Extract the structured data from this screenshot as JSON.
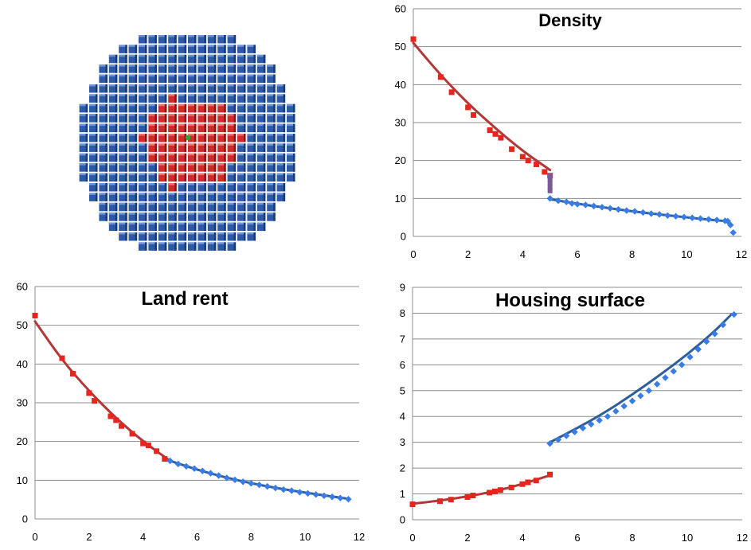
{
  "colors": {
    "grid": "#8c8c8c",
    "axis": "#8c8c8c",
    "center_marker": "#e8241e",
    "periphery_marker": "#3a7ce6",
    "center_curve": "#b03838",
    "periphery_curve": "#2e5e9a",
    "transition_marker": "#7a5a9a",
    "grid_block_blue": "#2d5aa8",
    "grid_block_red": "#d22a2a",
    "grid_center_dot": "#22aa33"
  },
  "grid_image": {
    "description_icon": "circular-city-grid-icon",
    "rows": [
      {
        "n": 10,
        "red": []
      },
      {
        "n": 14,
        "red": []
      },
      {
        "n": 16,
        "red": []
      },
      {
        "n": 18,
        "red": []
      },
      {
        "n": 18,
        "red": []
      },
      {
        "n": 20,
        "red": []
      },
      {
        "n": 20,
        "red": [
          9
        ]
      },
      {
        "n": 22,
        "red": [
          8,
          9,
          10,
          11,
          12,
          13,
          14
        ]
      },
      {
        "n": 22,
        "red": [
          7,
          8,
          9,
          10,
          11,
          12,
          13,
          14,
          15
        ]
      },
      {
        "n": 22,
        "red": [
          7,
          8,
          9,
          10,
          11,
          12,
          13,
          14,
          15
        ]
      },
      {
        "n": 22,
        "red": [
          6,
          7,
          8,
          9,
          10,
          11,
          12,
          13,
          14,
          15,
          16
        ]
      },
      {
        "n": 22,
        "red": [
          7,
          8,
          9,
          10,
          11,
          12,
          13,
          14,
          15
        ]
      },
      {
        "n": 22,
        "red": [
          7,
          8,
          9,
          10,
          11,
          12,
          13,
          14,
          15
        ]
      },
      {
        "n": 22,
        "red": [
          8,
          9,
          10,
          11,
          12,
          13,
          14
        ]
      },
      {
        "n": 22,
        "red": [
          8,
          9,
          10,
          11,
          12,
          13,
          14
        ]
      },
      {
        "n": 20,
        "red": [
          9
        ]
      },
      {
        "n": 20,
        "red": []
      },
      {
        "n": 18,
        "red": []
      },
      {
        "n": 18,
        "red": []
      },
      {
        "n": 16,
        "red": []
      },
      {
        "n": 14,
        "red": []
      },
      {
        "n": 10,
        "red": []
      }
    ],
    "center_row": 10,
    "center_col": 11
  },
  "chart_data": [
    {
      "type": "scatter",
      "title": "Density",
      "xlabel": "",
      "ylabel": "",
      "xlim": [
        0,
        12
      ],
      "ylim": [
        0,
        60
      ],
      "xticks": [
        "0",
        "2",
        "4",
        "6",
        "8",
        "10",
        "12"
      ],
      "yticks": [
        "0",
        "10",
        "20",
        "30",
        "40",
        "50",
        "60"
      ],
      "grid": true,
      "series": [
        {
          "role": "center",
          "x": [
            0,
            1.0,
            1.4,
            2.0,
            2.2,
            2.8,
            3.0,
            3.2,
            3.6,
            4.0,
            4.2,
            4.5,
            4.8,
            5.0
          ],
          "y": [
            52,
            42,
            38,
            34,
            32,
            28,
            27,
            26,
            23,
            21,
            20,
            19,
            17,
            16
          ]
        },
        {
          "role": "transition",
          "x": [
            5.0,
            5.0,
            5.0,
            5.0,
            5.0
          ],
          "y": [
            16,
            15,
            14,
            13,
            12
          ]
        },
        {
          "role": "periphery",
          "x": [
            5.0,
            5.3,
            5.6,
            5.8,
            6.0,
            6.3,
            6.6,
            6.9,
            7.2,
            7.5,
            7.8,
            8.1,
            8.4,
            8.7,
            9.0,
            9.3,
            9.6,
            9.9,
            10.2,
            10.5,
            10.8,
            11.1,
            11.4,
            11.5,
            11.6,
            11.7
          ],
          "y": [
            10,
            9.4,
            9.1,
            8.7,
            8.5,
            8.3,
            8.0,
            7.7,
            7.4,
            7.1,
            6.8,
            6.6,
            6.3,
            6.0,
            5.8,
            5.5,
            5.3,
            5.1,
            4.9,
            4.7,
            4.5,
            4.3,
            4.1,
            4.0,
            3.0,
            1.0
          ]
        }
      ],
      "curves": [
        {
          "role": "center",
          "x": [
            0,
            1,
            2,
            3,
            4,
            5
          ],
          "y": [
            51,
            42.5,
            35,
            28.5,
            22.5,
            17.5
          ]
        },
        {
          "role": "periphery",
          "x": [
            5,
            6,
            7,
            8,
            9,
            10,
            11,
            11.5
          ],
          "y": [
            9.8,
            8.6,
            7.6,
            6.6,
            5.8,
            5.0,
            4.3,
            4.0
          ]
        }
      ]
    },
    {
      "type": "scatter",
      "title": "Land rent",
      "xlabel": "",
      "ylabel": "",
      "xlim": [
        0,
        12
      ],
      "ylim": [
        0,
        60
      ],
      "xticks": [
        "0",
        "2",
        "4",
        "6",
        "8",
        "10",
        "12"
      ],
      "yticks": [
        "0",
        "10",
        "20",
        "30",
        "40",
        "50",
        "60"
      ],
      "grid": true,
      "series": [
        {
          "role": "center",
          "x": [
            0,
            1.0,
            1.4,
            2.0,
            2.2,
            2.8,
            3.0,
            3.2,
            3.6,
            4.0,
            4.2,
            4.5,
            4.8
          ],
          "y": [
            52.5,
            41.5,
            37.5,
            32.5,
            30.5,
            26.5,
            25.5,
            24.0,
            22.0,
            19.5,
            19.0,
            17.5,
            15.5
          ]
        },
        {
          "role": "periphery",
          "x": [
            5.0,
            5.3,
            5.6,
            5.9,
            6.2,
            6.5,
            6.8,
            7.1,
            7.4,
            7.7,
            8.0,
            8.3,
            8.6,
            8.9,
            9.2,
            9.5,
            9.8,
            10.1,
            10.4,
            10.7,
            11.0,
            11.3,
            11.6
          ],
          "y": [
            15.0,
            14.2,
            13.6,
            13.0,
            12.4,
            11.8,
            11.2,
            10.6,
            10.1,
            9.6,
            9.2,
            8.8,
            8.4,
            8.0,
            7.6,
            7.3,
            6.9,
            6.6,
            6.3,
            6.0,
            5.7,
            5.4,
            5.1
          ]
        }
      ],
      "curves": [
        {
          "role": "center",
          "x": [
            0,
            1,
            2,
            3,
            4,
            5
          ],
          "y": [
            51,
            41,
            33,
            26,
            20,
            15
          ]
        },
        {
          "role": "periphery",
          "x": [
            5,
            6,
            7,
            8,
            9,
            10,
            11,
            11.6
          ],
          "y": [
            15,
            12.7,
            10.8,
            9.2,
            7.9,
            6.8,
            5.8,
            5.2
          ]
        }
      ]
    },
    {
      "type": "scatter",
      "title": "Housing surface",
      "xlabel": "",
      "ylabel": "",
      "xlim": [
        0,
        12
      ],
      "ylim": [
        0,
        9
      ],
      "xticks": [
        "0",
        "2",
        "4",
        "6",
        "8",
        "10",
        "12"
      ],
      "yticks": [
        "0",
        "1",
        "2",
        "3",
        "4",
        "5",
        "6",
        "7",
        "8",
        "9"
      ],
      "grid": true,
      "series": [
        {
          "role": "center",
          "x": [
            0,
            1.0,
            1.4,
            2.0,
            2.2,
            2.8,
            3.0,
            3.2,
            3.6,
            4.0,
            4.2,
            4.5,
            5.0
          ],
          "y": [
            0.6,
            0.72,
            0.78,
            0.88,
            0.94,
            1.05,
            1.1,
            1.15,
            1.25,
            1.38,
            1.45,
            1.52,
            1.75
          ]
        },
        {
          "role": "periphery",
          "x": [
            5.0,
            5.3,
            5.6,
            5.9,
            6.2,
            6.5,
            6.8,
            7.1,
            7.4,
            7.7,
            8.0,
            8.3,
            8.6,
            8.9,
            9.2,
            9.5,
            9.8,
            10.1,
            10.4,
            10.7,
            11.0,
            11.3,
            11.7
          ],
          "y": [
            2.95,
            3.1,
            3.25,
            3.4,
            3.55,
            3.7,
            3.85,
            4.0,
            4.2,
            4.4,
            4.6,
            4.8,
            5.0,
            5.25,
            5.5,
            5.75,
            6.0,
            6.3,
            6.6,
            6.9,
            7.2,
            7.55,
            7.95
          ]
        }
      ],
      "curves": [
        {
          "role": "center",
          "x": [
            0,
            1,
            2,
            3,
            4,
            5
          ],
          "y": [
            0.62,
            0.74,
            0.9,
            1.1,
            1.38,
            1.72
          ]
        },
        {
          "role": "periphery",
          "x": [
            5,
            6,
            7,
            8,
            9,
            10,
            11,
            11.6
          ],
          "y": [
            3.0,
            3.55,
            4.15,
            4.85,
            5.6,
            6.4,
            7.3,
            7.95
          ]
        }
      ]
    }
  ]
}
